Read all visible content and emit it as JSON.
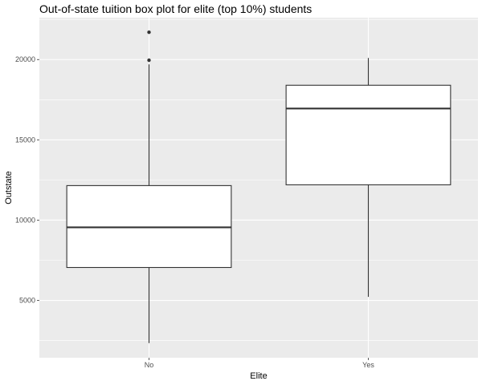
{
  "chart_data": {
    "type": "boxplot",
    "title": "Out-of-state tuition box plot for elite (top 10%) students",
    "xlabel": "Elite",
    "ylabel": "Outstate",
    "categories": [
      "No",
      "Yes"
    ],
    "boxes": [
      {
        "category": "No",
        "whisker_low": 2340,
        "q1": 7050,
        "median": 9550,
        "q3": 12150,
        "whisker_high": 19700,
        "outliers": [
          19960,
          21700
        ]
      },
      {
        "category": "Yes",
        "whisker_low": 5220,
        "q1": 12200,
        "median": 16950,
        "q3": 18400,
        "whisker_high": 20100,
        "outliers": []
      }
    ],
    "yticks": [
      5000,
      10000,
      15000,
      20000
    ],
    "ylim": [
      1430,
      22610
    ],
    "grid": true,
    "legend": "none",
    "colors": {
      "panel_background": "#ebebeb",
      "grid_major": "#ffffff",
      "box_fill": "#ffffff",
      "box_line": "#333333",
      "tick_text": "#4d4d4d"
    }
  }
}
